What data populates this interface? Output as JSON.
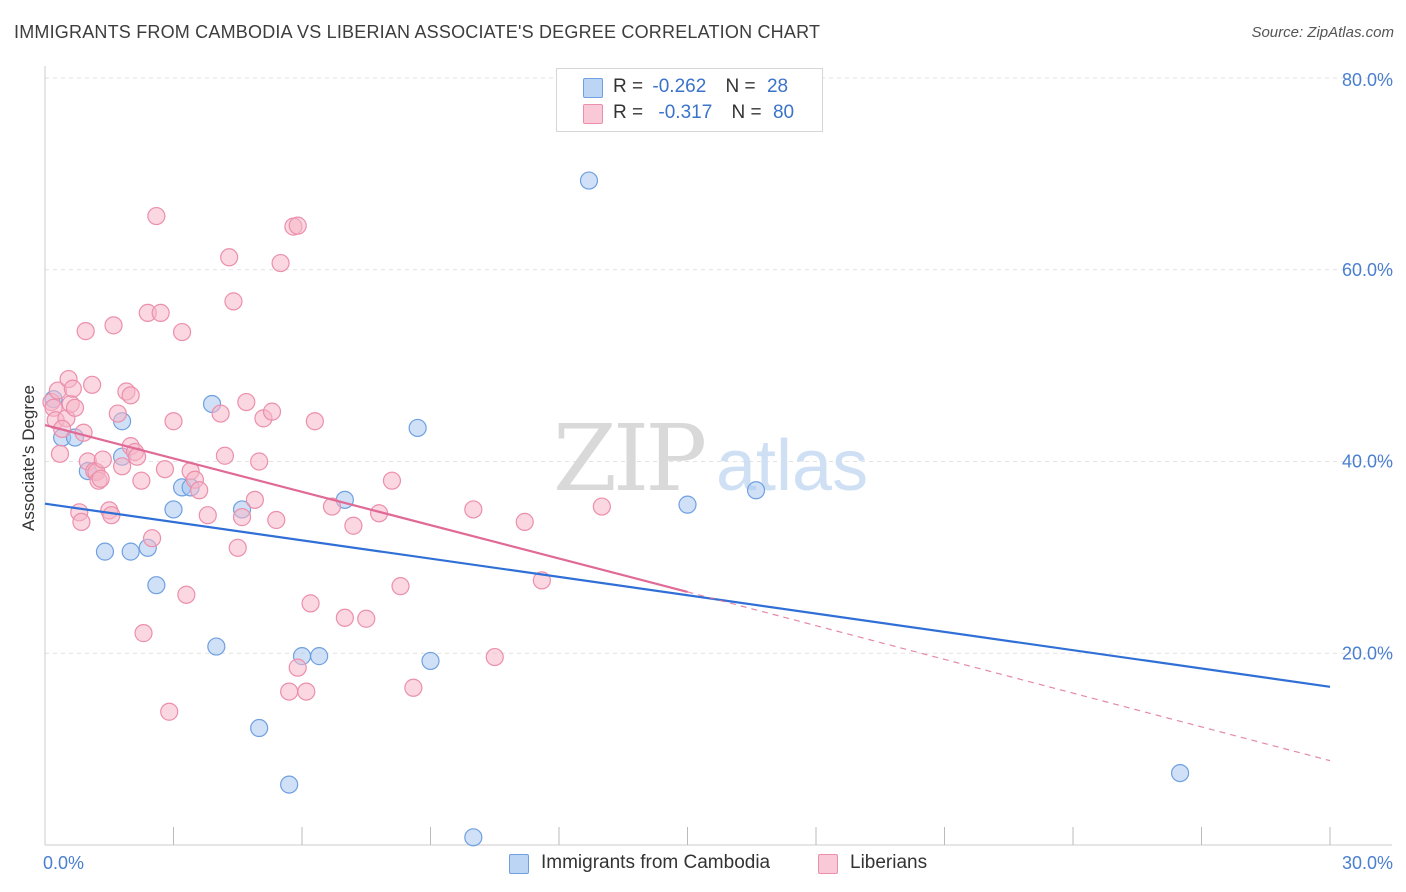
{
  "title": "IMMIGRANTS FROM CAMBODIA VS LIBERIAN ASSOCIATE'S DEGREE CORRELATION CHART",
  "source": "Source: ZipAtlas.com",
  "watermark": {
    "zip": "ZIP",
    "atlas": "atlas"
  },
  "legend": {
    "rows": [
      {
        "r_label": "R =",
        "r_value": "-0.262",
        "n_label": "N =",
        "n_value": "28"
      },
      {
        "r_label": "R =",
        "r_value": "-0.317",
        "n_label": "N =",
        "n_value": "80"
      }
    ]
  },
  "bottom_legend": [
    "Immigrants from Cambodia",
    "Liberians"
  ],
  "colors": {
    "blue_fill": "#a9c8f0",
    "blue_stroke": "#6fa0e0",
    "blue_line": "#2f6fd6",
    "pink_fill": "#f6b6c8",
    "pink_stroke": "#ec8fab",
    "pink_line": "#e06a95",
    "grid": "#e2e2e2",
    "axis_text": "#4a7fd0"
  },
  "chart_data": {
    "type": "scatter",
    "title": "IMMIGRANTS FROM CAMBODIA VS LIBERIAN ASSOCIATE'S DEGREE CORRELATION CHART",
    "xlabel": "",
    "ylabel": "Associate's Degree",
    "xlim": [
      0,
      30
    ],
    "ylim": [
      0,
      80
    ],
    "x_tick_labels": [
      "0.0%",
      "30.0%"
    ],
    "y_ticks": [
      20,
      40,
      60,
      80
    ],
    "y_tick_labels": [
      "20.0%",
      "40.0%",
      "60.0%",
      "80.0%"
    ],
    "series": [
      {
        "name": "Immigrants from Cambodia",
        "color": "blue",
        "points": [
          [
            0.2,
            46.5
          ],
          [
            0.4,
            42.5
          ],
          [
            0.7,
            42.5
          ],
          [
            1.0,
            39.0
          ],
          [
            1.4,
            30.6
          ],
          [
            1.8,
            40.5
          ],
          [
            1.8,
            44.2
          ],
          [
            2.0,
            30.6
          ],
          [
            2.4,
            31.0
          ],
          [
            2.6,
            27.1
          ],
          [
            3.0,
            35.0
          ],
          [
            3.2,
            37.3
          ],
          [
            3.4,
            37.3
          ],
          [
            3.9,
            46.0
          ],
          [
            4.0,
            20.7
          ],
          [
            4.6,
            35.0
          ],
          [
            5.0,
            12.2
          ],
          [
            5.7,
            6.3
          ],
          [
            6.0,
            19.7
          ],
          [
            6.4,
            19.7
          ],
          [
            7.0,
            36.0
          ],
          [
            8.7,
            43.5
          ],
          [
            9.0,
            19.2
          ],
          [
            10.0,
            0.8
          ],
          [
            12.7,
            69.3
          ],
          [
            15.0,
            35.5
          ],
          [
            16.6,
            37.0
          ],
          [
            26.5,
            7.5
          ]
        ],
        "trend": {
          "x0": 0.0,
          "y0": 35.6,
          "x1": 30.0,
          "y1": 16.5,
          "dashed_from": null
        }
      },
      {
        "name": "Liberians",
        "color": "pink",
        "points": [
          [
            0.15,
            46.2
          ],
          [
            0.2,
            45.6
          ],
          [
            0.25,
            44.3
          ],
          [
            0.3,
            47.4
          ],
          [
            0.35,
            40.8
          ],
          [
            0.5,
            44.5
          ],
          [
            0.55,
            48.6
          ],
          [
            0.6,
            46.0
          ],
          [
            0.65,
            47.6
          ],
          [
            0.7,
            45.6
          ],
          [
            0.8,
            34.7
          ],
          [
            0.85,
            33.7
          ],
          [
            0.9,
            43.0
          ],
          [
            0.95,
            53.6
          ],
          [
            1.0,
            40.0
          ],
          [
            1.1,
            48.0
          ],
          [
            1.15,
            39.0
          ],
          [
            1.2,
            38.9
          ],
          [
            1.25,
            38.0
          ],
          [
            1.35,
            40.2
          ],
          [
            1.5,
            34.9
          ],
          [
            1.55,
            34.4
          ],
          [
            1.6,
            54.2
          ],
          [
            1.7,
            45.0
          ],
          [
            1.8,
            39.5
          ],
          [
            1.9,
            47.3
          ],
          [
            2.0,
            41.6
          ],
          [
            2.1,
            41.0
          ],
          [
            2.15,
            40.5
          ],
          [
            2.25,
            38.0
          ],
          [
            2.3,
            22.1
          ],
          [
            2.4,
            55.5
          ],
          [
            2.5,
            32.0
          ],
          [
            2.6,
            65.6
          ],
          [
            2.7,
            55.5
          ],
          [
            2.8,
            39.2
          ],
          [
            2.9,
            13.9
          ],
          [
            3.0,
            44.2
          ],
          [
            3.2,
            53.5
          ],
          [
            3.3,
            26.1
          ],
          [
            3.4,
            39.0
          ],
          [
            3.5,
            38.1
          ],
          [
            3.6,
            37.0
          ],
          [
            3.8,
            34.4
          ],
          [
            4.1,
            45.0
          ],
          [
            4.2,
            40.6
          ],
          [
            4.3,
            61.3
          ],
          [
            4.4,
            56.7
          ],
          [
            4.5,
            31.0
          ],
          [
            4.6,
            34.2
          ],
          [
            4.7,
            46.2
          ],
          [
            4.9,
            36.0
          ],
          [
            5.0,
            40.0
          ],
          [
            5.1,
            44.5
          ],
          [
            5.3,
            45.2
          ],
          [
            5.4,
            33.9
          ],
          [
            5.5,
            60.7
          ],
          [
            5.7,
            16.0
          ],
          [
            5.8,
            64.5
          ],
          [
            5.9,
            64.6
          ],
          [
            6.1,
            16.0
          ],
          [
            6.2,
            25.2
          ],
          [
            6.3,
            44.2
          ],
          [
            6.7,
            35.3
          ],
          [
            7.0,
            23.7
          ],
          [
            7.2,
            33.3
          ],
          [
            7.5,
            23.6
          ],
          [
            7.8,
            34.6
          ],
          [
            8.1,
            38.0
          ],
          [
            8.3,
            27.0
          ],
          [
            8.6,
            16.4
          ],
          [
            10.0,
            35.0
          ],
          [
            10.5,
            19.6
          ],
          [
            11.2,
            33.7
          ],
          [
            11.6,
            27.6
          ],
          [
            13.0,
            35.3
          ],
          [
            0.4,
            43.4
          ],
          [
            1.3,
            38.2
          ],
          [
            2.0,
            46.9
          ],
          [
            5.9,
            18.5
          ]
        ],
        "trend": {
          "x0": 0.0,
          "y0": 43.8,
          "x1": 15.0,
          "y1": 26.4,
          "dash_x1": 30.0,
          "dash_y1": 8.8
        }
      }
    ]
  }
}
